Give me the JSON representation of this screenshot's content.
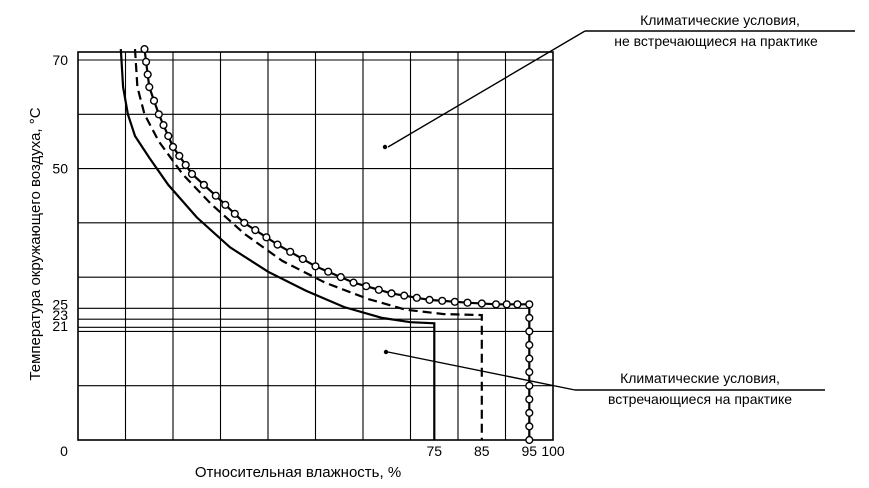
{
  "chart_data": {
    "type": "line",
    "xlabel": "Относительная влажность, %",
    "ylabel": "Температура окружающего воздуха, °C",
    "xlim": [
      0,
      100
    ],
    "ylim": [
      0,
      70
    ],
    "x_ticks": [
      {
        "value": 0,
        "label": "0"
      },
      {
        "value": 75,
        "label": "75"
      },
      {
        "value": 85,
        "label": "85"
      },
      {
        "value": 95,
        "label": "95"
      },
      {
        "value": 100,
        "label": "100"
      }
    ],
    "y_ticks": [
      {
        "value": 70,
        "label": "70"
      },
      {
        "value": 50,
        "label": "50"
      },
      {
        "value": 25,
        "label": "25"
      },
      {
        "value": 23,
        "label": "23"
      },
      {
        "value": 21,
        "label": "21"
      }
    ],
    "grid": true,
    "series": [
      {
        "style": "solid",
        "points": [
          [
            9,
            72
          ],
          [
            9.5,
            65
          ],
          [
            10.5,
            60
          ],
          [
            12,
            56
          ],
          [
            15,
            52
          ],
          [
            19,
            47
          ],
          [
            25,
            41
          ],
          [
            32,
            35.5
          ],
          [
            40,
            31
          ],
          [
            48,
            27.5
          ],
          [
            56,
            24.5
          ],
          [
            64,
            22.5
          ],
          [
            70,
            21.7
          ],
          [
            75,
            21.5
          ],
          [
            75,
            0
          ]
        ]
      },
      {
        "style": "dashed",
        "points": [
          [
            12,
            72
          ],
          [
            12.5,
            65
          ],
          [
            14,
            60
          ],
          [
            17,
            55
          ],
          [
            22,
            49
          ],
          [
            28,
            43.5
          ],
          [
            35,
            38
          ],
          [
            43,
            33
          ],
          [
            52,
            29
          ],
          [
            61,
            26
          ],
          [
            69,
            24
          ],
          [
            77,
            23.2
          ],
          [
            85,
            23
          ],
          [
            85,
            0
          ]
        ]
      },
      {
        "style": "circles",
        "points": [
          [
            14,
            72
          ],
          [
            15,
            65
          ],
          [
            17,
            60
          ],
          [
            20,
            54
          ],
          [
            24,
            49
          ],
          [
            29,
            45
          ],
          [
            35,
            40
          ],
          [
            42,
            36
          ],
          [
            50,
            32
          ],
          [
            58,
            29
          ],
          [
            66,
            27
          ],
          [
            74,
            25.8
          ],
          [
            82,
            25.3
          ],
          [
            88,
            25
          ],
          [
            92.5,
            25
          ],
          [
            95,
            25
          ],
          [
            95,
            0
          ]
        ]
      }
    ],
    "annotations": [
      {
        "text_lines": [
          "Климатические условия,",
          "не встречающиеся на практике"
        ]
      },
      {
        "text_lines": [
          "Климатические условия,",
          "встречающиеся на практике"
        ]
      }
    ]
  }
}
